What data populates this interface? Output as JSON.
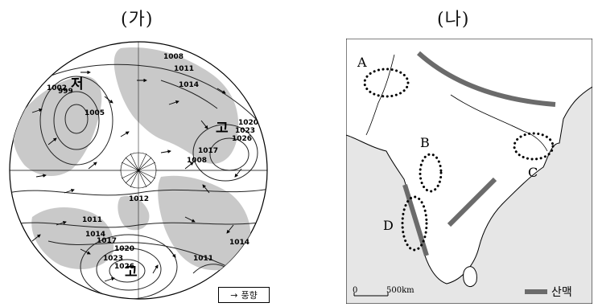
{
  "panels": {
    "ga": {
      "title": "(가)",
      "pressure_high_label": "고",
      "pressure_low_label": "저",
      "isobar_labels": [
        "1008",
        "1011",
        "1014",
        "999",
        "1002",
        "1005",
        "1020",
        "1023",
        "1026",
        "1017",
        "1008",
        "1012",
        "1011",
        "1014",
        "1017",
        "1020",
        "1023",
        "1026",
        "1014",
        "1011"
      ],
      "legend_label": "풍향",
      "legend_icon": "arrow-right-icon"
    },
    "na": {
      "title": "(나)",
      "region_labels": [
        "A",
        "B",
        "C",
        "D"
      ],
      "scale_start": "0",
      "scale_end": "500km",
      "legend_label": "산맥",
      "mountain_color": "#6b6b6b",
      "land_color": "#ffffff",
      "sea_color": "#e6e6e6"
    }
  }
}
